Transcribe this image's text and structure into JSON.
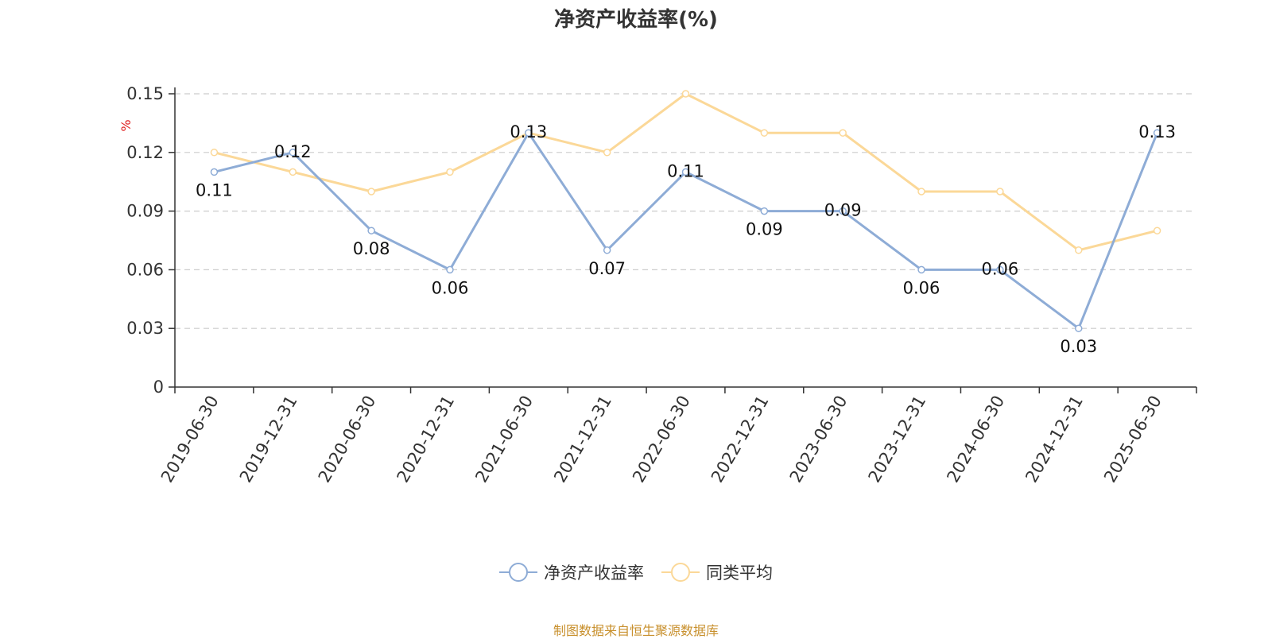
{
  "chart_data": {
    "type": "line",
    "title": "净资产收益率(%)",
    "ylabel": "%",
    "xlabel": "",
    "categories": [
      "2019-06-30",
      "2019-12-31",
      "2020-06-30",
      "2020-12-31",
      "2021-06-30",
      "2021-12-31",
      "2022-06-30",
      "2022-12-31",
      "2023-06-30",
      "2023-12-31",
      "2024-06-30",
      "2024-12-31",
      "2025-06-30"
    ],
    "ylim": [
      0,
      0.15
    ],
    "yticks": [
      0,
      0.03,
      0.06,
      0.09,
      0.12,
      0.15
    ],
    "ytick_labels": [
      "0",
      "0.03",
      "0.06",
      "0.09",
      "0.12",
      "0.15"
    ],
    "grid": true,
    "legend_position": "bottom",
    "series": [
      {
        "name": "净资产收益率",
        "color": "#8eacd6",
        "values": [
          0.11,
          0.12,
          0.08,
          0.06,
          0.13,
          0.07,
          0.11,
          0.09,
          0.09,
          0.06,
          0.06,
          0.03,
          0.13
        ],
        "labels": [
          "0.11",
          "0.12",
          "0.08",
          "0.06",
          "0.13",
          "0.07",
          "0.11",
          "0.09",
          "0.09",
          "0.06",
          "0.06",
          "0.03",
          "0.13"
        ]
      },
      {
        "name": "同类平均",
        "color": "#fbd898",
        "values": [
          0.12,
          0.11,
          0.1,
          0.11,
          0.13,
          0.12,
          0.15,
          0.13,
          0.13,
          0.1,
          0.1,
          0.07,
          0.08
        ]
      }
    ]
  },
  "source_note": "制图数据来自恒生聚源数据库",
  "colors": {
    "axis": "#333333",
    "grid": "#cccccc",
    "ylabel": "#e02020"
  }
}
